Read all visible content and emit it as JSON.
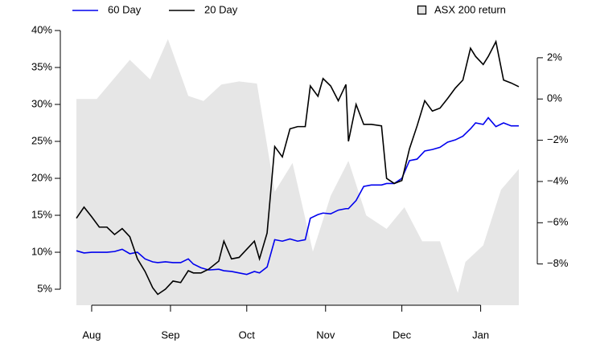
{
  "chart_data": {
    "type": "line",
    "x": [
      -6,
      -3,
      0,
      3,
      6,
      9,
      12,
      15,
      18,
      21,
      24,
      26,
      29,
      32,
      35,
      38,
      40,
      43,
      46,
      50,
      52,
      55,
      58,
      61,
      64,
      66,
      69,
      72,
      75,
      78,
      81,
      84,
      86,
      89,
      91,
      94,
      97,
      100,
      101,
      104,
      107,
      110,
      114,
      116,
      119,
      122,
      125,
      128,
      131,
      134,
      137,
      140,
      143,
      146,
      149,
      151,
      154,
      156,
      159,
      162,
      165,
      168
    ],
    "xlim": [
      -6,
      168
    ],
    "xticks": [
      {
        "value": 0,
        "label": "Aug"
      },
      {
        "value": 31,
        "label": "Sep"
      },
      {
        "value": 61,
        "label": "Oct"
      },
      {
        "value": 92,
        "label": "Nov"
      },
      {
        "value": 122,
        "label": "Dec"
      },
      {
        "value": 153,
        "label": "Jan"
      }
    ],
    "ylim": [
      2.83,
      40
    ],
    "yticks": [
      {
        "value": 5,
        "label": "5%"
      },
      {
        "value": 10,
        "label": "10%"
      },
      {
        "value": 15,
        "label": "15%"
      },
      {
        "value": 20,
        "label": "20%"
      },
      {
        "value": 25,
        "label": "25%"
      },
      {
        "value": 30,
        "label": "30%"
      },
      {
        "value": 35,
        "label": "35%"
      },
      {
        "value": 40,
        "label": "40%"
      }
    ],
    "y2lim": [
      -10,
      3.32
    ],
    "y2ticks": [
      {
        "value": -8,
        "label": "−8%"
      },
      {
        "value": -6,
        "label": "−6%"
      },
      {
        "value": -4,
        "label": "−4%"
      },
      {
        "value": -2,
        "label": "−2%"
      },
      {
        "value": 0,
        "label": "0%"
      },
      {
        "value": 2,
        "label": "2%"
      }
    ],
    "series": [
      {
        "name": "60 Day",
        "color": "#0000ee",
        "values": [
          10.2,
          9.9,
          10.0,
          10.0,
          10.0,
          10.1,
          10.4,
          9.8,
          10.0,
          9.1,
          8.7,
          8.6,
          8.7,
          8.6,
          8.6,
          9.1,
          8.4,
          7.9,
          7.6,
          7.7,
          7.5,
          7.4,
          7.2,
          7.0,
          7.4,
          7.2,
          8.0,
          11.7,
          11.5,
          11.8,
          11.5,
          11.7,
          14.6,
          15.1,
          15.3,
          15.2,
          15.7,
          15.9,
          15.9,
          17.0,
          18.9,
          19.1,
          19.1,
          19.3,
          19.3,
          20.0,
          22.4,
          22.6,
          23.7,
          23.9,
          24.2,
          24.9,
          25.2,
          25.7,
          26.7,
          27.5,
          27.3,
          28.2,
          27.0,
          27.5,
          27.1,
          27.1
        ]
      },
      {
        "name": "20 Day",
        "color": "#000000",
        "values": [
          14.6,
          16.1,
          14.8,
          13.4,
          13.4,
          12.4,
          13.2,
          12.1,
          9.1,
          7.4,
          5.2,
          4.3,
          5.0,
          6.1,
          5.9,
          7.5,
          7.2,
          7.2,
          7.7,
          8.8,
          11.5,
          9.1,
          9.3,
          10.4,
          11.5,
          9.1,
          12.6,
          24.3,
          22.9,
          26.7,
          27.0,
          27.0,
          32.5,
          31.1,
          33.5,
          32.5,
          30.5,
          32.7,
          25.0,
          30.0,
          27.3,
          27.3,
          27.1,
          20.0,
          19.3,
          19.7,
          24.0,
          27.1,
          30.5,
          29.1,
          29.5,
          30.8,
          32.2,
          33.3,
          37.6,
          36.5,
          35.4,
          36.5,
          38.5,
          33.3,
          32.9,
          32.4
        ]
      },
      {
        "name": "ASX 200 return",
        "color": "#e6e6e6",
        "axis": "y2",
        "x": [
          -6,
          2,
          15,
          23,
          30,
          38,
          44,
          51,
          58,
          65,
          72,
          79,
          87,
          94,
          101,
          108,
          116,
          123,
          130,
          137,
          144,
          147,
          154,
          161,
          168
        ],
        "values": [
          0.0,
          0.0,
          1.9,
          0.95,
          2.9,
          0.15,
          -0.1,
          0.7,
          0.85,
          0.75,
          -4.5,
          -3.1,
          -7.4,
          -4.7,
          -3.0,
          -5.65,
          -6.3,
          -5.25,
          -6.9,
          -6.9,
          -9.4,
          -7.9,
          -7.1,
          -4.4,
          -3.4
        ]
      }
    ]
  }
}
